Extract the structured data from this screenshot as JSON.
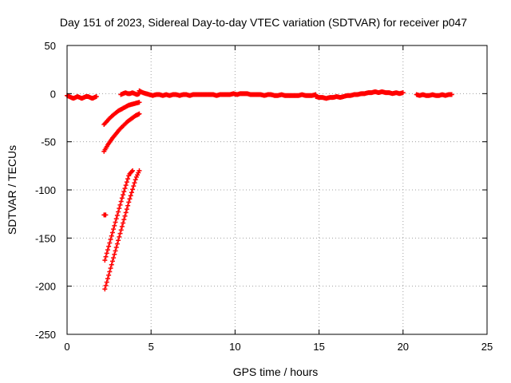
{
  "chart_data": {
    "type": "scatter",
    "title": "Day 151 of 2023, Sidereal Day-to-day VTEC variation (SDTVAR) for receiver p047",
    "xlabel": "GPS time / hours",
    "ylabel": "SDTVAR / TECUs",
    "xlim": [
      0,
      25
    ],
    "ylim": [
      -250,
      50
    ],
    "xticks": [
      "0",
      "5",
      "10",
      "15",
      "20",
      "25"
    ],
    "yticks": [
      "50",
      "0",
      "-50",
      "-100",
      "-150",
      "-200",
      "-250"
    ],
    "grid": true,
    "marker": "+",
    "color": "#ff0000",
    "series": [
      {
        "segments": [
          {
            "x_start": 0.0,
            "x_end": 1.75,
            "y": [
              -2,
              -3,
              -4,
              -5,
              -4,
              -3,
              -4,
              -5,
              -4,
              -3,
              -3,
              -4,
              -5,
              -4,
              -3
            ]
          },
          {
            "x_start": 3.2,
            "x_end": 4.3,
            "y": [
              -1,
              0,
              1,
              0,
              0,
              1,
              0,
              -1,
              0
            ]
          },
          {
            "x_start": 4.3,
            "x_end": 9.5,
            "y": [
              3,
              1,
              0,
              -1,
              -2,
              -1,
              -1,
              -2,
              -1,
              -2,
              -1,
              -1,
              -2,
              -1,
              -1,
              -2,
              -1,
              -1,
              -1,
              -1,
              -1,
              -1,
              -1,
              -2,
              -1,
              -1,
              -1
            ]
          },
          {
            "x_start": 9.5,
            "x_end": 14.8,
            "y": [
              -1,
              -1,
              0,
              -1,
              0,
              0,
              0,
              -1,
              -1,
              -1,
              -1,
              -2,
              -1,
              -1,
              -2,
              -2,
              -1,
              -2,
              -2,
              -2,
              -2,
              -2,
              -1,
              -2,
              -2,
              -2,
              -1
            ]
          },
          {
            "x_start": 14.8,
            "x_end": 20.0,
            "y": [
              -3,
              -4,
              -4,
              -5,
              -4,
              -4,
              -3,
              -4,
              -3,
              -2,
              -2,
              -1,
              -1,
              0,
              0,
              1,
              1,
              2,
              1,
              2,
              1,
              1,
              0,
              1,
              0,
              1
            ]
          },
          {
            "x_start": 20.8,
            "x_end": 22.9,
            "y": [
              -1,
              -2,
              -1,
              -2,
              -2,
              -1,
              -2,
              -2,
              -1,
              -2,
              -1,
              -1
            ]
          },
          {
            "x_start": 2.2,
            "x_end": 4.3,
            "y": [
              -32,
              -28,
              -24,
              -21,
              -18,
              -16,
              -14,
              -12,
              -11,
              -10,
              -9
            ]
          },
          {
            "x_start": 2.2,
            "x_end": 4.3,
            "y": [
              -60,
              -53,
              -47,
              -42,
              -37,
              -33,
              -29,
              -26,
              -23,
              -21
            ]
          },
          {
            "x_start": 2.25,
            "x_end": 3.9,
            "y": [
              -173,
              -160,
              -147,
              -134,
              -121,
              -108,
              -96,
              -84,
              -80
            ]
          },
          {
            "x_start": 2.25,
            "x_end": 4.3,
            "y": [
              -203,
              -190,
              -177,
              -164,
              -151,
              -138,
              -125,
              -112,
              -100,
              -88,
              -80
            ]
          },
          {
            "x_start": 2.2,
            "x_end": 2.3,
            "y": [
              -126,
              -126
            ]
          }
        ]
      }
    ]
  }
}
